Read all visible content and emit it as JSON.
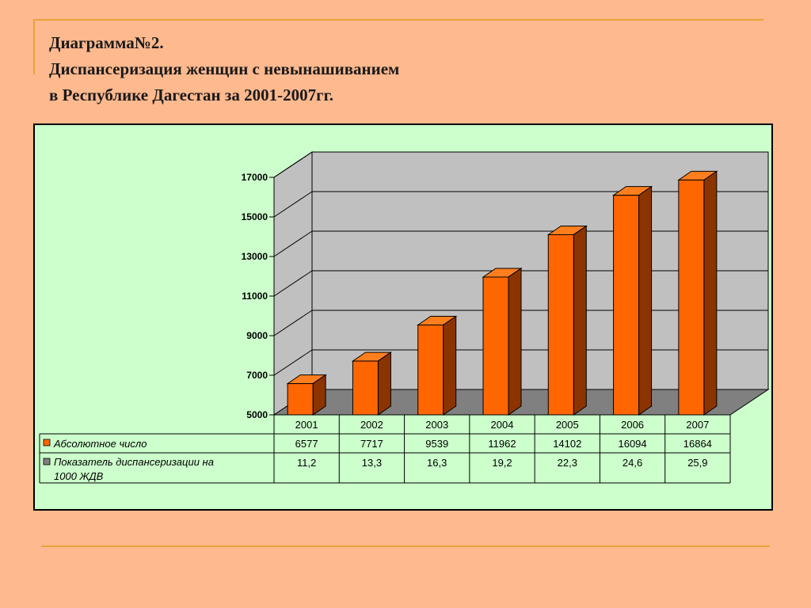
{
  "title": {
    "line1": "Диаграмма№2.",
    "line2": "Диспансеризация женщин с невынашиванием",
    "line3": "в Республике Дагестан за 2001-2007гг."
  },
  "chart_data": {
    "type": "bar",
    "categories": [
      "2001",
      "2002",
      "2003",
      "2004",
      "2005",
      "2006",
      "2007"
    ],
    "series": [
      {
        "name": "Абсолютное число",
        "values": [
          6577,
          7717,
          9539,
          11962,
          14102,
          16094,
          16864
        ],
        "labels": [
          "6577",
          "7717",
          "9539",
          "11962",
          "14102",
          "16094",
          "16864"
        ],
        "color": "#FF6600"
      },
      {
        "name": "Показатель диспансеризации на 1000 ЖДВ",
        "name_lines": [
          "Показатель диспансеризации на",
          "1000 ЖДВ"
        ],
        "values": [
          11.2,
          13.3,
          16.3,
          19.2,
          22.3,
          24.6,
          25.9
        ],
        "labels": [
          "11,2",
          "13,3",
          "16,3",
          "19,2",
          "22,3",
          "24,6",
          "25,9"
        ],
        "color": "#808080"
      }
    ],
    "yticks": [
      "5000",
      "7000",
      "9000",
      "11000",
      "13000",
      "15000",
      "17000"
    ],
    "ylim": [
      5000,
      17000
    ],
    "grid": true,
    "legend": "data-table"
  },
  "colors": {
    "background": "#FFB98E",
    "panel": "#CCFFCC",
    "wall": "#C0C0C0",
    "bar_front": "#FF6600",
    "bar_top": "#FF7F1E",
    "bar_side": "#8B3400",
    "accent_line": "#E8A33A"
  }
}
